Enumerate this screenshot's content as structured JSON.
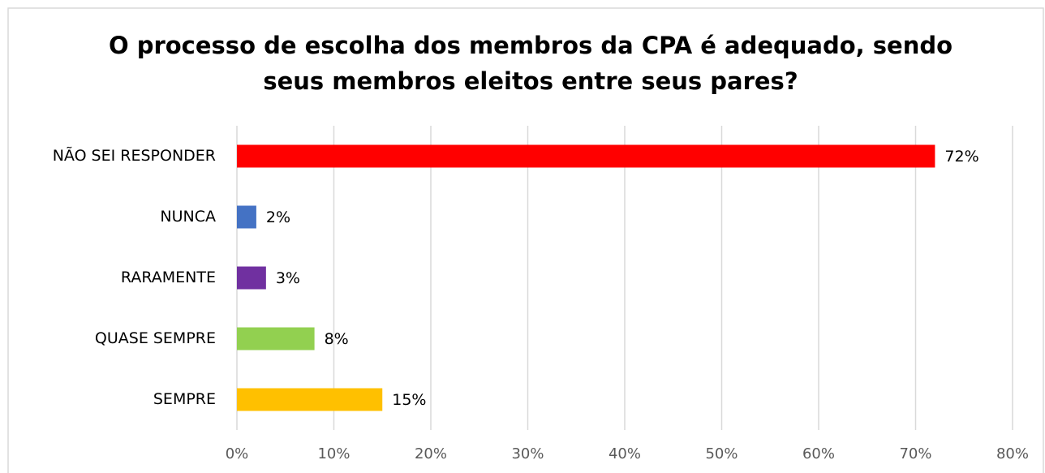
{
  "chart_data": {
    "type": "bar",
    "orientation": "horizontal",
    "title": [
      "O processo de escolha dos membros da CPA é adequado, sendo",
      "seus membros eleitos entre seus pares?"
    ],
    "categories": [
      "NÃO SEI RESPONDER",
      "NUNCA",
      "RARAMENTE",
      "QUASE SEMPRE",
      "SEMPRE"
    ],
    "values": [
      72,
      2,
      3,
      8,
      15
    ],
    "value_labels": [
      "72%",
      "2%",
      "3%",
      "8%",
      "15%"
    ],
    "colors": [
      "#ff0000",
      "#4472c4",
      "#7030a0",
      "#92d050",
      "#ffc000"
    ],
    "xlim": [
      0,
      80
    ],
    "xticks": [
      {
        "value": 0,
        "label": "0%"
      },
      {
        "value": 10,
        "label": "10%"
      },
      {
        "value": 20,
        "label": "20%"
      },
      {
        "value": 30,
        "label": "30%"
      },
      {
        "value": 40,
        "label": "40%"
      },
      {
        "value": 50,
        "label": "50%"
      },
      {
        "value": 60,
        "label": "60%"
      },
      {
        "value": 70,
        "label": "70%"
      },
      {
        "value": 80,
        "label": "80%"
      }
    ],
    "grid": true
  }
}
